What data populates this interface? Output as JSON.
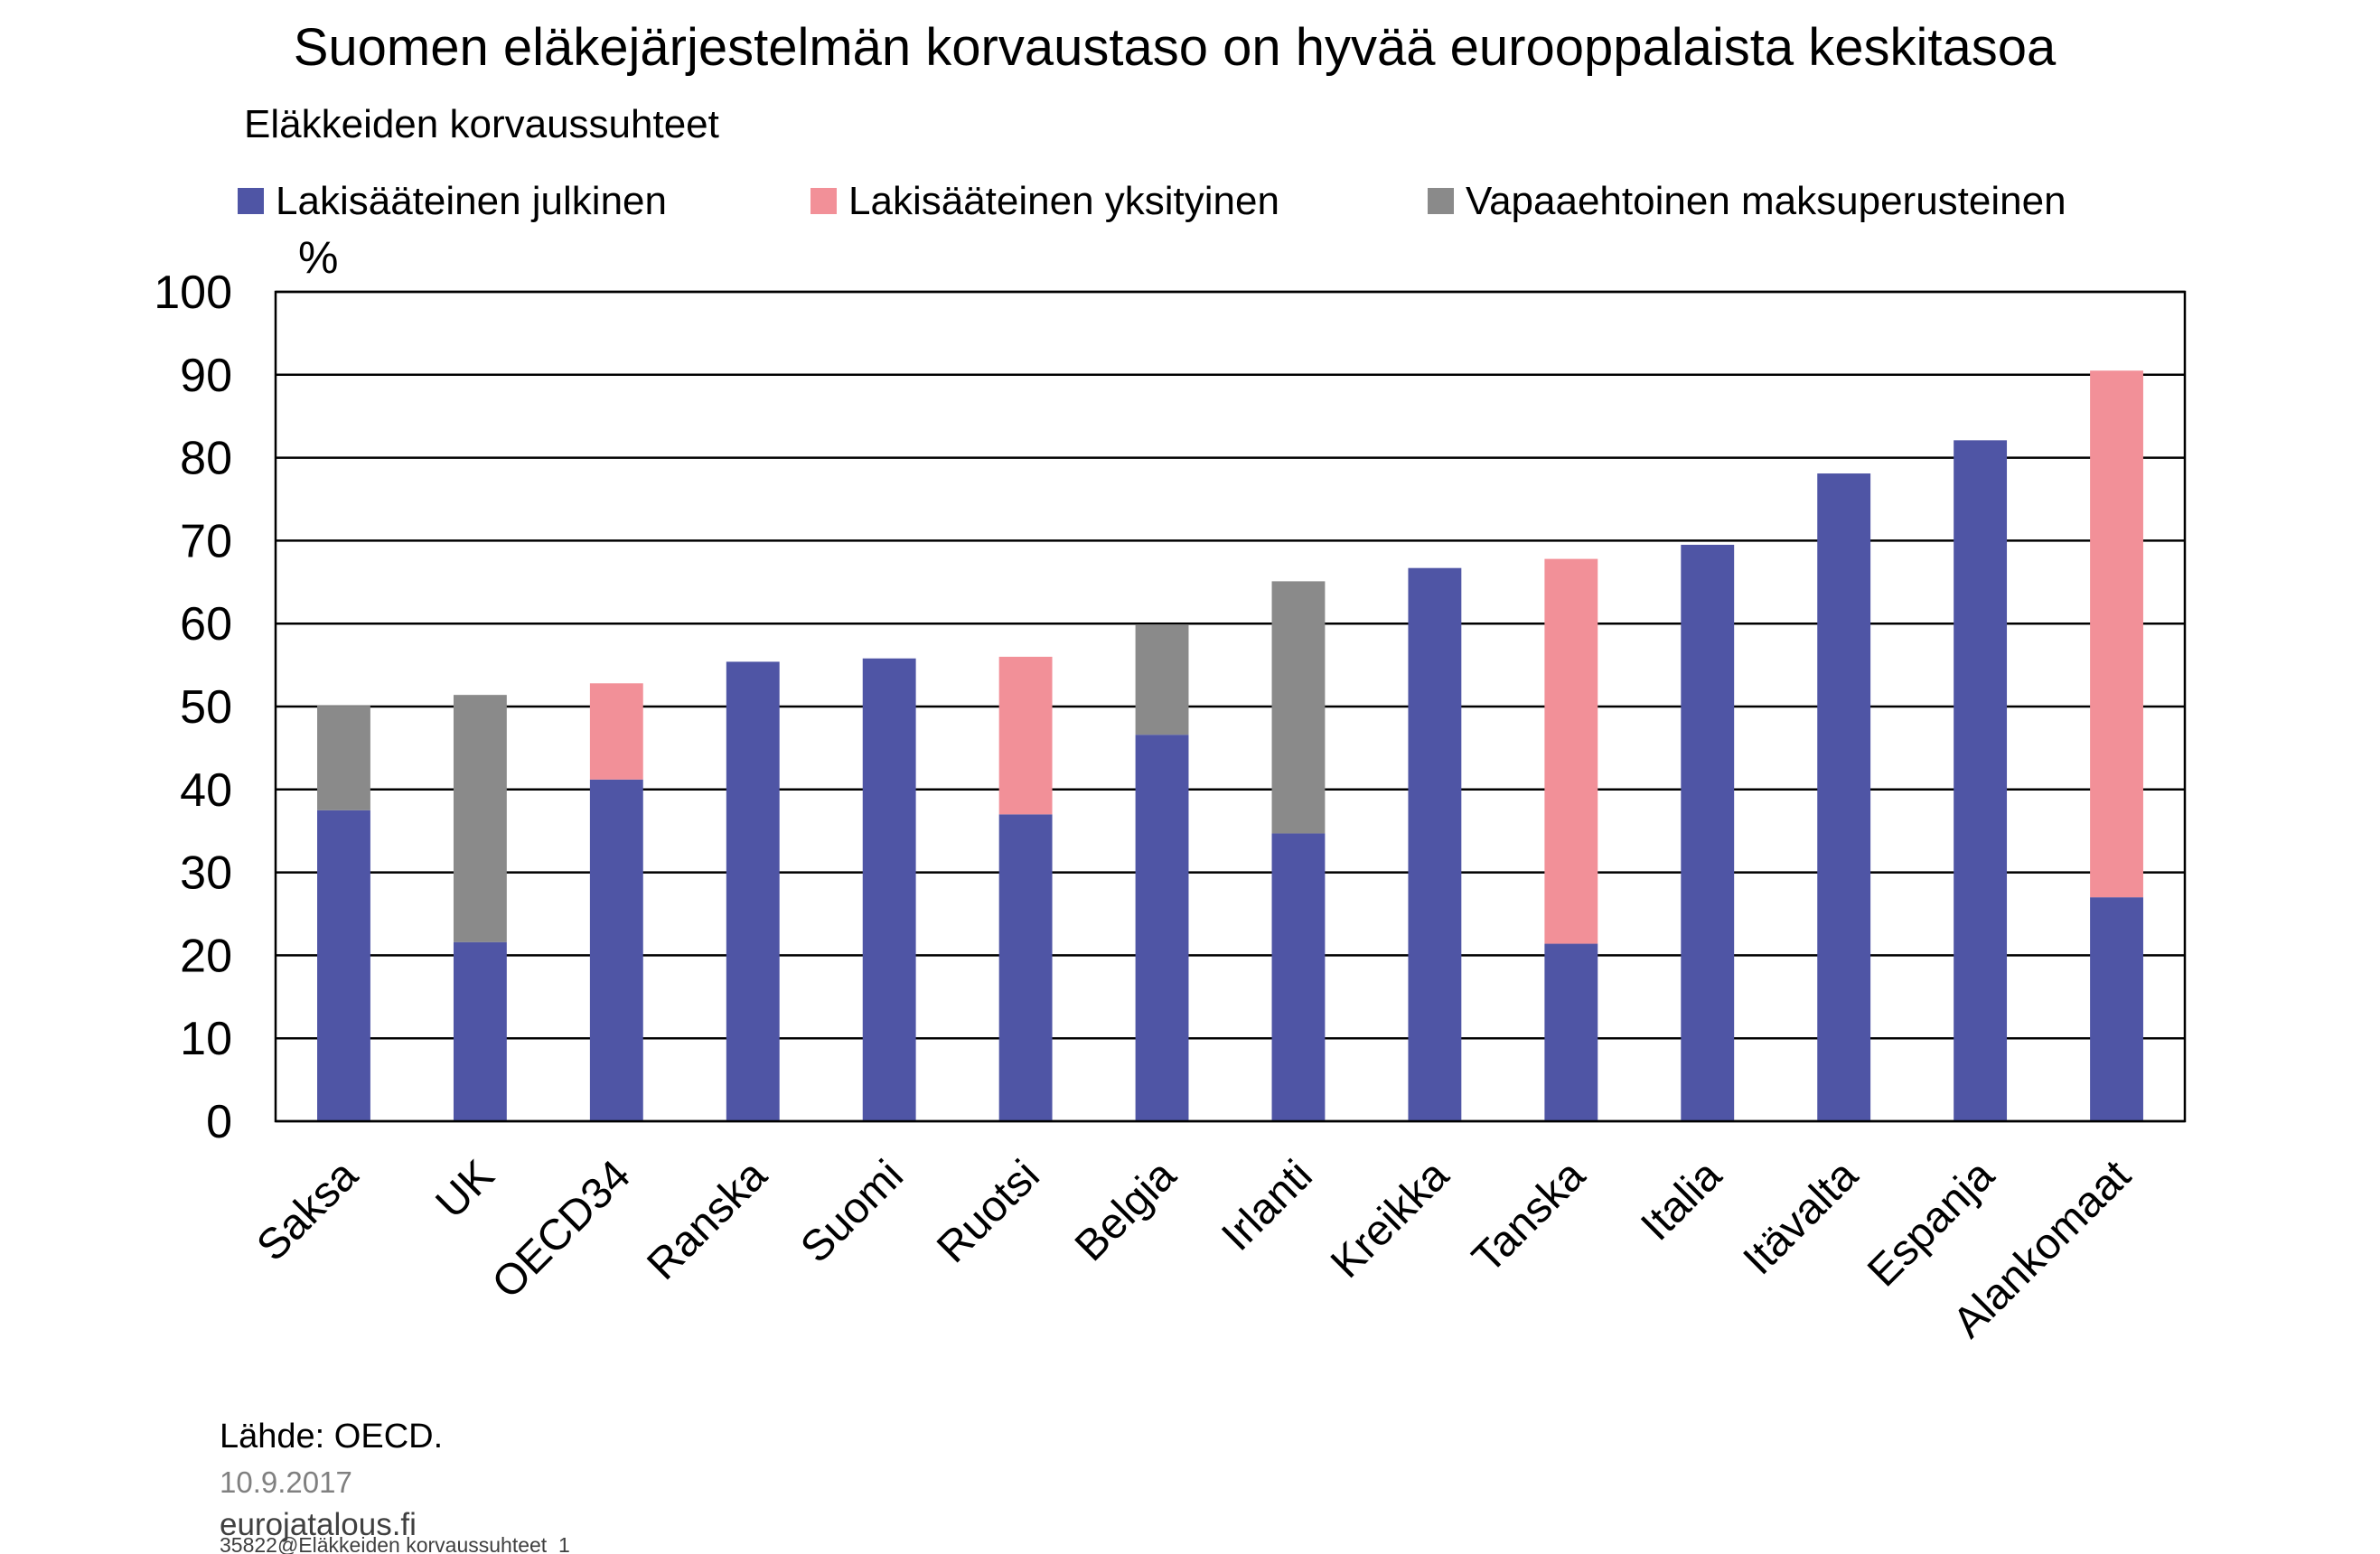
{
  "chart_data": {
    "type": "bar",
    "stacked": true,
    "title": "Suomen eläkejärjestelmän korvaustaso on hyvää eurooppalaista keskitasoa",
    "subtitle": "Eläkkeiden korvaussuhteet",
    "ylabel": "%",
    "xlabel": "",
    "ylim": [
      0,
      100
    ],
    "yticks": [
      0,
      10,
      20,
      30,
      40,
      50,
      60,
      70,
      80,
      90,
      100
    ],
    "grid": true,
    "legend_position": "top",
    "categories": [
      "Saksa",
      "UK",
      "OECD34",
      "Ranska",
      "Suomi",
      "Ruotsi",
      "Belgia",
      "Irlanti",
      "Kreikka",
      "Tanska",
      "Italia",
      "Itävalta",
      "Espanja",
      "Alankomaat"
    ],
    "series": [
      {
        "name": "Lakisääteinen julkinen",
        "color": "#4f55a5",
        "values": [
          37.5,
          21.6,
          41.2,
          55.4,
          55.8,
          37.0,
          46.6,
          34.7,
          66.7,
          21.4,
          69.5,
          78.1,
          82.1,
          27.0
        ]
      },
      {
        "name": "Lakisääteinen yksityinen",
        "color": "#f29098",
        "values": [
          0,
          0,
          11.6,
          0,
          0,
          19.0,
          0,
          0,
          0,
          46.4,
          0,
          0,
          0,
          63.5
        ]
      },
      {
        "name": "Vapaaehtoinen maksuperusteinen",
        "color": "#8a8a8a",
        "values": [
          12.6,
          29.8,
          0,
          0,
          0,
          0,
          13.3,
          30.4,
          0,
          0,
          0,
          0,
          0,
          0
        ]
      }
    ]
  },
  "footer": {
    "source": "Lähde: OECD.",
    "date": "10.9.2017",
    "site": "eurojatalous.fi",
    "code": "35822@Eläkkeiden korvaussuhteet_1"
  }
}
